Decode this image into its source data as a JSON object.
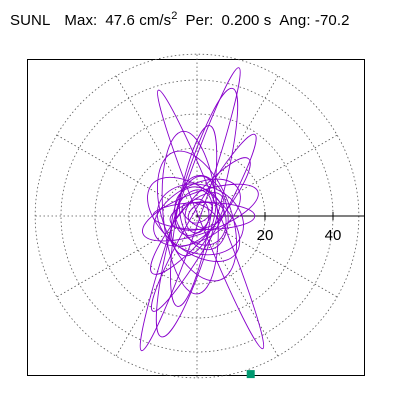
{
  "header": {
    "station": "SUNL",
    "max_label": "Max:",
    "max_value": "47.6",
    "max_unit": "cm/s",
    "max_unit_exp": "2",
    "per_label": "Per:",
    "per_value": "0.200 s",
    "ang_label": "Ang:",
    "ang_value": "-70.2"
  },
  "colors": {
    "trace": "#8800cc",
    "end_marker": "#009970",
    "grid": "#555555",
    "axis": "#000000"
  },
  "chart_data": {
    "type": "scatter",
    "title": "",
    "polar_grid": {
      "ring_radii": [
        10,
        20,
        30,
        40,
        47.6
      ],
      "spoke_angles_deg": [
        0,
        30,
        60,
        90,
        120,
        150,
        180,
        210,
        240,
        270,
        300,
        330
      ],
      "grid": true
    },
    "x_axis": {
      "ticks": [
        20,
        40
      ],
      "tick_labels": [
        "20",
        "40"
      ]
    },
    "xlim": [
      -50,
      50
    ],
    "ylim": [
      -50,
      50
    ],
    "series": [
      {
        "kind": "orbit-trace",
        "segments": [
          {
            "a": 44,
            "b": 3.5,
            "angle": 71,
            "cx": -2,
            "cy": 2
          },
          {
            "a": 41,
            "b": 3.0,
            "angle": -68,
            "cx": 4,
            "cy": -1
          },
          {
            "a": 38,
            "b": 6.0,
            "angle": 74,
            "cx": 0,
            "cy": 1
          },
          {
            "a": 30,
            "b": 4.0,
            "angle": 60,
            "cx": 2,
            "cy": -2
          },
          {
            "a": 27,
            "b": 5.0,
            "angle": 80,
            "cx": -1,
            "cy": 0
          },
          {
            "a": 24,
            "b": 8.0,
            "angle": 95,
            "cx": -2,
            "cy": 1
          },
          {
            "a": 22,
            "b": 5.0,
            "angle": 50,
            "cx": 1,
            "cy": 0
          },
          {
            "a": 20,
            "b": 10.0,
            "angle": 110,
            "cx": 0,
            "cy": 0
          },
          {
            "a": 18,
            "b": 6.0,
            "angle": 20,
            "cx": 1,
            "cy": 1
          },
          {
            "a": 16,
            "b": 9.0,
            "angle": 140,
            "cx": -1,
            "cy": -1
          },
          {
            "a": 15,
            "b": 4.0,
            "angle": 0,
            "cx": 2,
            "cy": 0
          },
          {
            "a": 14,
            "b": 8.0,
            "angle": 30,
            "cx": 0,
            "cy": 1
          },
          {
            "a": 13,
            "b": 10.0,
            "angle": 160,
            "cx": 1,
            "cy": -1
          },
          {
            "a": 12,
            "b": 6.0,
            "angle": 75,
            "cx": -1,
            "cy": 0
          },
          {
            "a": 11,
            "b": 7.0,
            "angle": 100,
            "cx": 2,
            "cy": 1
          },
          {
            "a": 10,
            "b": 5.0,
            "angle": 45,
            "cx": 0,
            "cy": -1
          },
          {
            "a": 9,
            "b": 7.0,
            "angle": 120,
            "cx": 1,
            "cy": 0
          },
          {
            "a": 8,
            "b": 4.0,
            "angle": 10,
            "cx": 0,
            "cy": 0
          },
          {
            "a": 7,
            "b": 5.0,
            "angle": 65,
            "cx": -1,
            "cy": 1
          },
          {
            "a": 6,
            "b": 3.0,
            "angle": 150,
            "cx": 1,
            "cy": 0
          },
          {
            "a": 5,
            "b": 3.5,
            "angle": 85,
            "cx": 0,
            "cy": 0
          },
          {
            "a": 4,
            "b": 2.5,
            "angle": 35,
            "cx": 1,
            "cy": 1
          }
        ],
        "end_point": {
          "x": 15.8,
          "y": -46.5
        }
      }
    ]
  }
}
